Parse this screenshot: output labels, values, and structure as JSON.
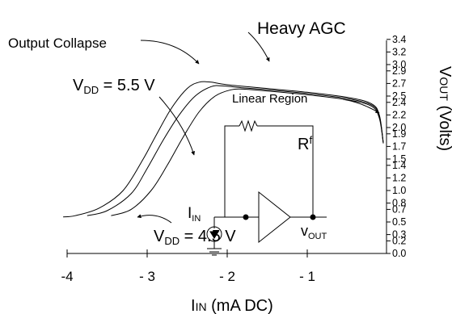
{
  "chart_data": {
    "type": "line",
    "xlabel": "IIN (mA DC)",
    "ylabel": "VOUT (Volts)",
    "xlim": [
      -4,
      0
    ],
    "ylim": [
      0,
      3.4
    ],
    "x_ticks": [
      "-4",
      "- 3",
      "- 2",
      "- 1"
    ],
    "x_tick_values": [
      -4,
      -3,
      -2,
      -1
    ],
    "y_ticks": [
      "3.4",
      "3.2",
      "3.0",
      "2.9",
      "2.7",
      "2.5",
      "2.4",
      "2.2",
      "2.0",
      "1.9",
      "1.7",
      "1.5",
      "1.4",
      "1.2",
      "1.0",
      "0.8",
      "0.7",
      "0.5",
      "0.3",
      "0.2",
      "0.0"
    ],
    "y_tick_values": [
      3.4,
      3.2,
      3.0,
      2.9,
      2.7,
      2.5,
      2.4,
      2.2,
      2.0,
      1.9,
      1.7,
      1.5,
      1.4,
      1.2,
      1.0,
      0.8,
      0.7,
      0.5,
      0.3,
      0.2,
      0.0
    ],
    "series": [
      {
        "x": [
          -4.05,
          -3.9,
          -3.6,
          -3.3,
          -3.05,
          -2.9,
          -2.7,
          -2.5,
          -2.35,
          -2.2,
          -2.0,
          -1.5,
          -1.0,
          -0.5,
          -0.2,
          -0.1,
          -0.05
        ],
        "y": [
          0.58,
          0.6,
          0.72,
          1.0,
          1.5,
          1.85,
          2.3,
          2.62,
          2.72,
          2.72,
          2.68,
          2.62,
          2.56,
          2.48,
          2.38,
          2.2,
          1.75
        ]
      },
      {
        "x": [
          -3.75,
          -3.5,
          -3.2,
          -3.0,
          -2.8,
          -2.6,
          -2.4,
          -2.2,
          -2.05,
          -1.8,
          -1.5,
          -1.0,
          -0.5,
          -0.2,
          -0.1,
          -0.05
        ],
        "y": [
          0.6,
          0.68,
          0.95,
          1.35,
          1.8,
          2.2,
          2.5,
          2.65,
          2.66,
          2.63,
          2.6,
          2.54,
          2.46,
          2.36,
          2.18,
          1.75
        ]
      },
      {
        "x": [
          -3.45,
          -3.2,
          -2.95,
          -2.75,
          -2.55,
          -2.35,
          -2.15,
          -1.95,
          -1.8,
          -1.5,
          -1.0,
          -0.5,
          -0.2,
          -0.1,
          -0.05
        ],
        "y": [
          0.6,
          0.7,
          1.0,
          1.4,
          1.85,
          2.25,
          2.5,
          2.6,
          2.61,
          2.58,
          2.52,
          2.44,
          2.34,
          2.15,
          1.75
        ]
      }
    ],
    "annotations": {
      "output_collapse": "Output Collapse",
      "heavy_agc": "Heavy AGC",
      "linear_region": "Linear Region",
      "vdd_high": {
        "prefix": "V",
        "sub": "DD",
        "suffix": " = 5.5 V"
      },
      "vdd_low": {
        "prefix": "V",
        "sub": "DD",
        "suffix": " = 4.5 V"
      }
    },
    "schematic": {
      "rf": {
        "main": "R",
        "sup": "f"
      },
      "iin": {
        "main": "I",
        "sub": "IN"
      },
      "vout": {
        "main": "v",
        "sub": "OUT"
      }
    },
    "axis_labels": {
      "x": {
        "main": "I",
        "small": "IN",
        "rest": " (mA DC)"
      },
      "y": {
        "main": "V",
        "small": "OUT",
        "rest": " (Volts)"
      }
    }
  }
}
